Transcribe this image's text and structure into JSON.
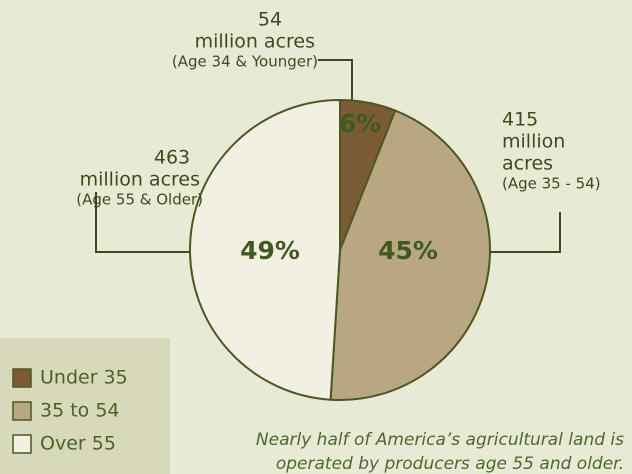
{
  "chart_data": {
    "type": "pie",
    "categories": [
      "Under 35",
      "35 to 54",
      "Over 55"
    ],
    "values": [
      6,
      45,
      49
    ],
    "value_labels": [
      "6%",
      "45%",
      "49%"
    ],
    "colors": [
      "#7b5b35",
      "#b9a683",
      "#f3f0e3"
    ],
    "annotations": [
      {
        "acres": 54,
        "unit_lines": [
          "million acres"
        ],
        "group": "(Age 34 & Younger)"
      },
      {
        "acres": 415,
        "unit_lines": [
          "million",
          "acres"
        ],
        "group": "(Age 35 - 54)"
      },
      {
        "acres": 463,
        "unit_lines": [
          "million acres"
        ],
        "group": "(Age 55 & Older)"
      }
    ],
    "caption": [
      "Nearly half of America’s agricultural land is",
      "operated by producers age 55 and older."
    ]
  }
}
